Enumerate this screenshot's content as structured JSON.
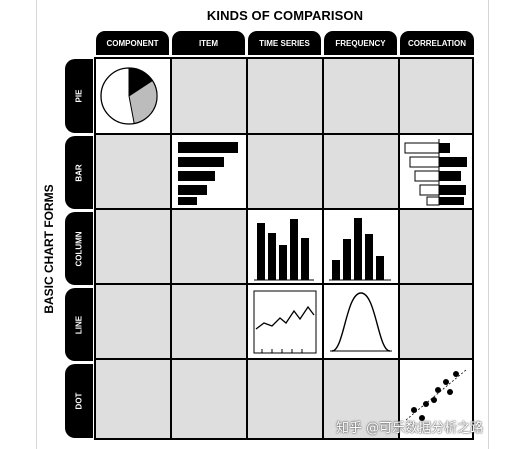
{
  "title_top": "KINDS OF COMPARISON",
  "title_left": "BASIC CHART FORMS",
  "columns": [
    "COMPONENT",
    "ITEM",
    "TIME SERIES",
    "FREQUENCY",
    "CORRELATION"
  ],
  "rows": [
    "PIE",
    "BAR",
    "COLUMN",
    "LINE",
    "DOT"
  ],
  "watermark": "知乎 @可乐数据分析之路",
  "colors": {
    "header": "#000000",
    "cell_fill": "#dedede",
    "active_cell": "#ffffff"
  }
}
